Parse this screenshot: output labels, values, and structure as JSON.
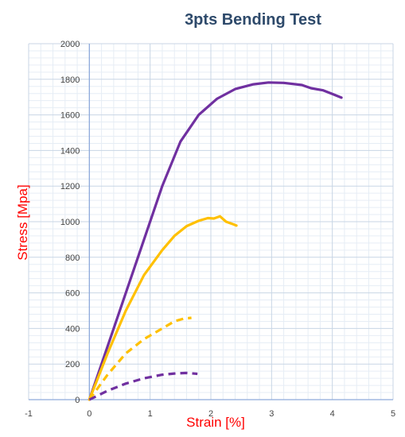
{
  "chart_data": {
    "type": "line",
    "title": "3pts Bending Test",
    "xlabel": "Strain [%]",
    "ylabel": "Stress [Mpa]",
    "xlim": [
      -1,
      5
    ],
    "ylim": [
      0,
      2000
    ],
    "x_ticks": [
      "-1",
      "0",
      "1",
      "2",
      "3",
      "4",
      "5"
    ],
    "y_ticks": [
      "0",
      "200",
      "400",
      "600",
      "800",
      "1000",
      "1200",
      "1400",
      "1600",
      "1800",
      "2000"
    ],
    "grid": true,
    "legend": "none",
    "colors": {
      "title": "#2e4a6b",
      "axis_label": "#ff0000",
      "purple": "#7030a0",
      "gold": "#ffc000",
      "grid_major": "#c8d6e5",
      "grid_minor": "#e6edf5",
      "zero_axis": "#8eaadb"
    },
    "series": [
      {
        "color": "#7030a0",
        "dash": "solid",
        "points": [
          [
            0,
            0
          ],
          [
            0.4,
            400
          ],
          [
            0.8,
            800
          ],
          [
            1.2,
            1200
          ],
          [
            1.5,
            1450
          ],
          [
            1.8,
            1600
          ],
          [
            2.1,
            1690
          ],
          [
            2.4,
            1745
          ],
          [
            2.7,
            1772
          ],
          [
            2.95,
            1782
          ],
          [
            3.2,
            1780
          ],
          [
            3.5,
            1768
          ],
          [
            3.65,
            1750
          ],
          [
            3.85,
            1738
          ],
          [
            4.0,
            1718
          ],
          [
            4.15,
            1697
          ]
        ]
      },
      {
        "color": "#ffc000",
        "dash": "solid",
        "points": [
          [
            0,
            0
          ],
          [
            0.3,
            260
          ],
          [
            0.6,
            500
          ],
          [
            0.9,
            700
          ],
          [
            1.2,
            840
          ],
          [
            1.4,
            920
          ],
          [
            1.6,
            975
          ],
          [
            1.8,
            1005
          ],
          [
            1.95,
            1020
          ],
          [
            2.05,
            1018
          ],
          [
            2.15,
            1030
          ],
          [
            2.25,
            1000
          ],
          [
            2.35,
            988
          ],
          [
            2.42,
            978
          ]
        ]
      },
      {
        "color": "#ffc000",
        "dash": "dashed",
        "points": [
          [
            0,
            0
          ],
          [
            0.3,
            140
          ],
          [
            0.6,
            260
          ],
          [
            0.9,
            340
          ],
          [
            1.2,
            400
          ],
          [
            1.4,
            440
          ],
          [
            1.55,
            455
          ],
          [
            1.68,
            460
          ]
        ]
      },
      {
        "color": "#7030a0",
        "dash": "dashed",
        "points": [
          [
            0,
            0
          ],
          [
            0.3,
            50
          ],
          [
            0.6,
            90
          ],
          [
            0.9,
            120
          ],
          [
            1.2,
            140
          ],
          [
            1.4,
            147
          ],
          [
            1.6,
            150
          ],
          [
            1.78,
            145
          ]
        ]
      }
    ]
  }
}
